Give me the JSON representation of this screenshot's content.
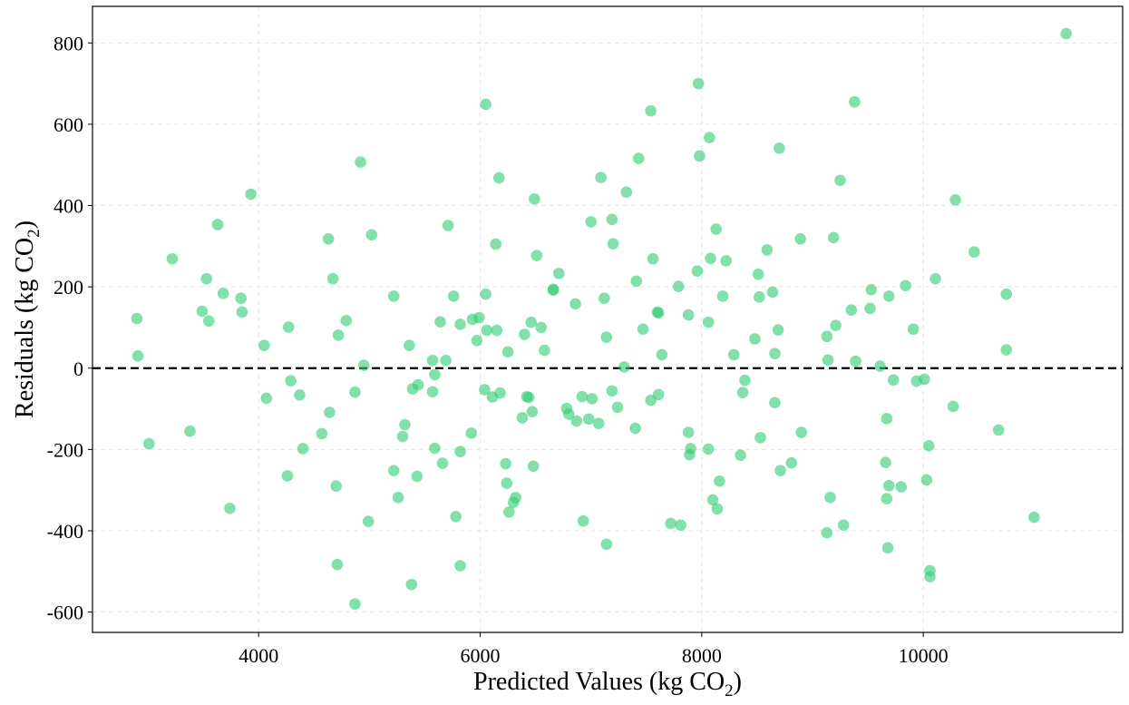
{
  "chart_data": {
    "type": "scatter",
    "title": "",
    "xlabel_text": "Predicted Values (kg CO",
    "xlabel_sub": "2",
    "xlabel_close": ")",
    "ylabel_text": "Residuals (kg CO",
    "ylabel_sub": "2",
    "ylabel_close": ")",
    "xlim": [
      2500,
      11800
    ],
    "ylim": [
      -650,
      890
    ],
    "xticks": [
      4000,
      6000,
      8000,
      10000
    ],
    "xtick_labels": [
      "4000",
      "6000",
      "8000",
      "10000"
    ],
    "yticks": [
      -600,
      -400,
      -200,
      0,
      200,
      400,
      600,
      800
    ],
    "ytick_labels": [
      "-600",
      "-400",
      "-200",
      "0",
      "200",
      "400",
      "600",
      "800"
    ],
    "grid": true,
    "reference_line": {
      "y": 0,
      "style": "dashed",
      "color": "#000000"
    },
    "point_color": "#2ecc71",
    "points": [
      [
        2900,
        122
      ],
      [
        2910,
        30
      ],
      [
        3010,
        -186
      ],
      [
        3220,
        269
      ],
      [
        3380,
        -155
      ],
      [
        3490,
        140
      ],
      [
        3530,
        220
      ],
      [
        3550,
        116
      ],
      [
        3630,
        353
      ],
      [
        3680,
        184
      ],
      [
        3740,
        -345
      ],
      [
        3840,
        172
      ],
      [
        3850,
        138
      ],
      [
        3930,
        428
      ],
      [
        4050,
        56
      ],
      [
        4070,
        -74
      ],
      [
        4260,
        -265
      ],
      [
        4270,
        101
      ],
      [
        4290,
        -31
      ],
      [
        4370,
        -66
      ],
      [
        4400,
        -198
      ],
      [
        4570,
        -161
      ],
      [
        4630,
        318
      ],
      [
        4640,
        -109
      ],
      [
        4670,
        220
      ],
      [
        4700,
        -290
      ],
      [
        4710,
        -483
      ],
      [
        4720,
        81
      ],
      [
        4790,
        117
      ],
      [
        4870,
        -59
      ],
      [
        4870,
        -580
      ],
      [
        4920,
        507
      ],
      [
        4950,
        7
      ],
      [
        4990,
        -377
      ],
      [
        5020,
        328
      ],
      [
        5220,
        177
      ],
      [
        5220,
        -252
      ],
      [
        5260,
        -318
      ],
      [
        5300,
        -168
      ],
      [
        5320,
        -139
      ],
      [
        5360,
        56
      ],
      [
        5380,
        -532
      ],
      [
        5390,
        -51
      ],
      [
        5430,
        -266
      ],
      [
        5440,
        -41
      ],
      [
        5570,
        19
      ],
      [
        5570,
        -58
      ],
      [
        5590,
        -16
      ],
      [
        5590,
        -197
      ],
      [
        5640,
        114
      ],
      [
        5660,
        -234
      ],
      [
        5690,
        19
      ],
      [
        5710,
        351
      ],
      [
        5760,
        177
      ],
      [
        5780,
        -365
      ],
      [
        5820,
        108
      ],
      [
        5820,
        -205
      ],
      [
        5820,
        -486
      ],
      [
        5920,
        -160
      ],
      [
        5930,
        120
      ],
      [
        5970,
        68
      ],
      [
        5990,
        124
      ],
      [
        6040,
        -53
      ],
      [
        6050,
        182
      ],
      [
        6050,
        649
      ],
      [
        6060,
        93
      ],
      [
        6110,
        -71
      ],
      [
        6140,
        305
      ],
      [
        6150,
        93
      ],
      [
        6170,
        468
      ],
      [
        6180,
        -61
      ],
      [
        6230,
        -235
      ],
      [
        6240,
        -283
      ],
      [
        6250,
        40
      ],
      [
        6260,
        -354
      ],
      [
        6300,
        -330
      ],
      [
        6320,
        -318
      ],
      [
        6380,
        -122
      ],
      [
        6400,
        83
      ],
      [
        6420,
        -70
      ],
      [
        6440,
        -72
      ],
      [
        6460,
        113
      ],
      [
        6470,
        -107
      ],
      [
        6480,
        -241
      ],
      [
        6490,
        416
      ],
      [
        6510,
        277
      ],
      [
        6550,
        100
      ],
      [
        6580,
        44
      ],
      [
        6660,
        194
      ],
      [
        6660,
        192
      ],
      [
        6710,
        233
      ],
      [
        6780,
        -99
      ],
      [
        6800,
        -113
      ],
      [
        6860,
        158
      ],
      [
        6870,
        -130
      ],
      [
        6920,
        -70
      ],
      [
        6930,
        -376
      ],
      [
        6980,
        -125
      ],
      [
        7000,
        360
      ],
      [
        7010,
        -75
      ],
      [
        7070,
        -136
      ],
      [
        7090,
        469
      ],
      [
        7120,
        172
      ],
      [
        7140,
        -433
      ],
      [
        7140,
        76
      ],
      [
        7190,
        -56
      ],
      [
        7190,
        366
      ],
      [
        7200,
        306
      ],
      [
        7240,
        -96
      ],
      [
        7300,
        3
      ],
      [
        7320,
        433
      ],
      [
        7400,
        -148
      ],
      [
        7410,
        214
      ],
      [
        7430,
        516
      ],
      [
        7470,
        96
      ],
      [
        7540,
        -79
      ],
      [
        7540,
        633
      ],
      [
        7560,
        269
      ],
      [
        7600,
        138
      ],
      [
        7610,
        -65
      ],
      [
        7610,
        136
      ],
      [
        7640,
        33
      ],
      [
        7720,
        -382
      ],
      [
        7790,
        201
      ],
      [
        7810,
        -386
      ],
      [
        7880,
        131
      ],
      [
        7880,
        -158
      ],
      [
        7890,
        -213
      ],
      [
        7900,
        -198
      ],
      [
        7960,
        239
      ],
      [
        7970,
        700
      ],
      [
        7980,
        522
      ],
      [
        8060,
        113
      ],
      [
        8060,
        -199
      ],
      [
        8070,
        567
      ],
      [
        8080,
        270
      ],
      [
        8100,
        -324
      ],
      [
        8130,
        342
      ],
      [
        8140,
        -346
      ],
      [
        8160,
        -278
      ],
      [
        8190,
        177
      ],
      [
        8220,
        264
      ],
      [
        8290,
        33
      ],
      [
        8350,
        -214
      ],
      [
        8370,
        -60
      ],
      [
        8390,
        -30
      ],
      [
        8480,
        72
      ],
      [
        8510,
        231
      ],
      [
        8520,
        175
      ],
      [
        8530,
        -171
      ],
      [
        8590,
        291
      ],
      [
        8640,
        187
      ],
      [
        8660,
        36
      ],
      [
        8660,
        -85
      ],
      [
        8690,
        94
      ],
      [
        8700,
        541
      ],
      [
        8710,
        -252
      ],
      [
        8810,
        -233
      ],
      [
        8890,
        318
      ],
      [
        8900,
        -158
      ],
      [
        9130,
        78
      ],
      [
        9130,
        -405
      ],
      [
        9140,
        20
      ],
      [
        9160,
        -318
      ],
      [
        9190,
        321
      ],
      [
        9210,
        105
      ],
      [
        9250,
        462
      ],
      [
        9280,
        -386
      ],
      [
        9350,
        143
      ],
      [
        9380,
        655
      ],
      [
        9390,
        17
      ],
      [
        9520,
        147
      ],
      [
        9530,
        193
      ],
      [
        9610,
        5
      ],
      [
        9660,
        -232
      ],
      [
        9670,
        -124
      ],
      [
        9670,
        -321
      ],
      [
        9680,
        -442
      ],
      [
        9690,
        -289
      ],
      [
        9690,
        177
      ],
      [
        9730,
        -29
      ],
      [
        9800,
        -292
      ],
      [
        9840,
        203
      ],
      [
        9910,
        96
      ],
      [
        9940,
        -32
      ],
      [
        10010,
        -27
      ],
      [
        10030,
        -275
      ],
      [
        10050,
        -191
      ],
      [
        10060,
        -498
      ],
      [
        10060,
        -513
      ],
      [
        10110,
        220
      ],
      [
        10270,
        -94
      ],
      [
        10290,
        414
      ],
      [
        10460,
        286
      ],
      [
        10680,
        -152
      ],
      [
        10750,
        182
      ],
      [
        10750,
        45
      ],
      [
        11000,
        -367
      ],
      [
        11290,
        823
      ]
    ]
  }
}
